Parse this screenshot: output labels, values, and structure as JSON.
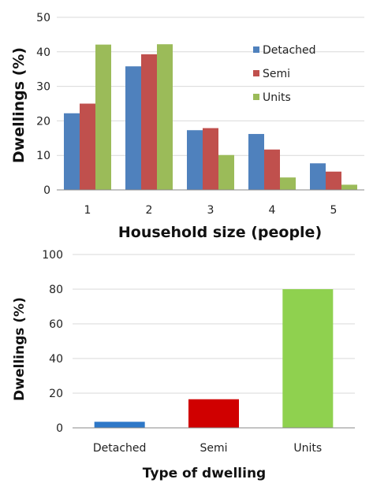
{
  "chart_data": [
    {
      "type": "bar",
      "xlabel": "Household size (people)",
      "ylabel": "Dwellings (%)",
      "ylim": [
        0,
        50
      ],
      "yticks": [
        0,
        10,
        20,
        30,
        40,
        50
      ],
      "categories": [
        "1",
        "2",
        "3",
        "4",
        "5"
      ],
      "series": [
        {
          "name": "Detached",
          "color": "#4f81bd",
          "values": [
            22.2,
            35.8,
            17.3,
            16.2,
            7.7
          ]
        },
        {
          "name": "Semi",
          "color": "#c0504d",
          "values": [
            25.0,
            39.3,
            17.9,
            11.7,
            5.3
          ]
        },
        {
          "name": "Units",
          "color": "#9bbb59",
          "values": [
            42.1,
            42.2,
            10.1,
            3.6,
            1.5
          ]
        }
      ],
      "legend": "right",
      "grid": true
    },
    {
      "type": "bar",
      "xlabel": "Type of dwelling",
      "ylabel": "Dwellings (%)",
      "ylim": [
        0,
        100
      ],
      "yticks": [
        0,
        20,
        40,
        60,
        80,
        100
      ],
      "categories": [
        "Detached",
        "Semi",
        "Units"
      ],
      "values": [
        3.5,
        16.5,
        80.0
      ],
      "colors": [
        "#2e78c8",
        "#d00000",
        "#8fd14f"
      ],
      "grid": true
    }
  ]
}
